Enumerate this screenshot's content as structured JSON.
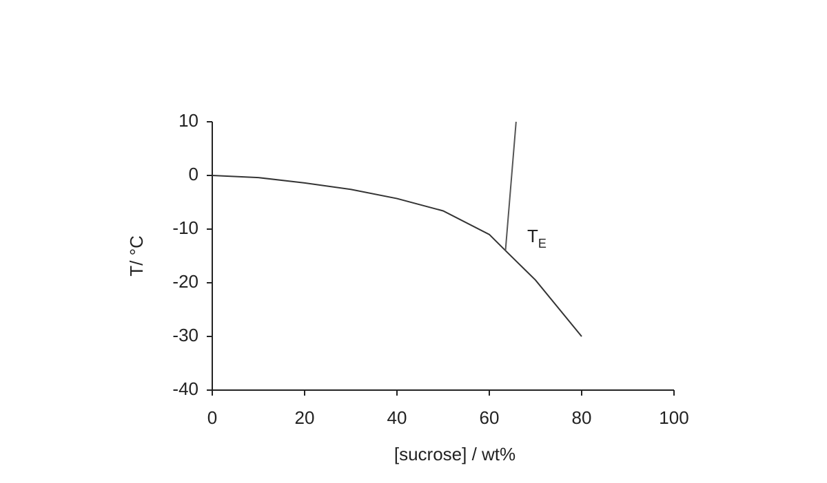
{
  "chart_data": {
    "type": "line",
    "xlabel": "[sucrose] / wt%",
    "ylabel": "T/ °C",
    "annotation": "T",
    "annotation_subscript": "E",
    "xlim": [
      0,
      100
    ],
    "xticks": [
      0,
      20,
      40,
      60,
      80,
      100
    ],
    "ylim": [
      -40,
      10
    ],
    "yticks": [
      -40,
      -30,
      -20,
      -10,
      0,
      10
    ],
    "grid": false,
    "series": [
      {
        "color": "#333333",
        "x": [
          0,
          10,
          20,
          30,
          40,
          50,
          60,
          63.5,
          70,
          80
        ],
        "values": [
          0,
          -0.4,
          -1.4,
          -2.6,
          -4.3,
          -6.6,
          -11,
          -14,
          -19.5,
          -30
        ]
      },
      {
        "color": "#555555",
        "x": [
          63.5,
          65.8
        ],
        "values": [
          -14,
          10
        ]
      }
    ]
  }
}
